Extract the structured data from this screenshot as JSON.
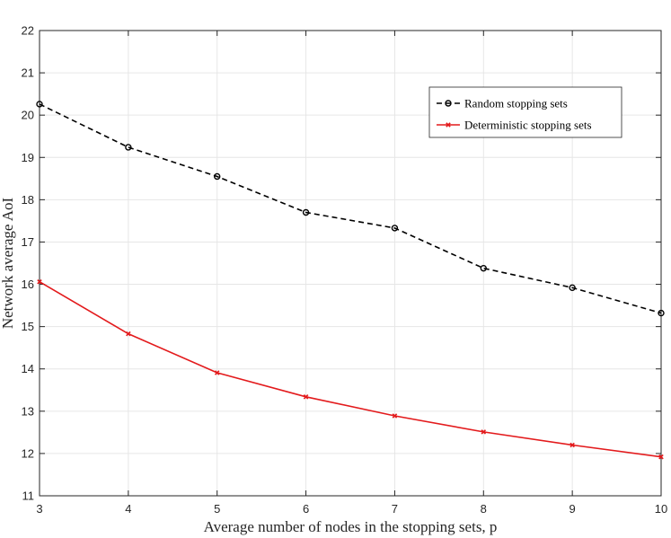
{
  "chart_data": {
    "type": "line",
    "xlabel": "Average number of nodes in the stopping sets, p",
    "ylabel": "Network average AoI",
    "xlim": [
      3,
      10
    ],
    "ylim": [
      11,
      22
    ],
    "x_ticks": [
      3,
      4,
      5,
      6,
      7,
      8,
      9,
      10
    ],
    "y_ticks": [
      11,
      12,
      13,
      14,
      15,
      16,
      17,
      18,
      19,
      20,
      21,
      22
    ],
    "grid": true,
    "legend_position": "top-right",
    "x": [
      3,
      4,
      5,
      6,
      7,
      8,
      9,
      10
    ],
    "series": [
      {
        "name": "Random stopping sets",
        "values": [
          20.26,
          19.24,
          18.55,
          17.7,
          17.33,
          16.38,
          15.92,
          15.32
        ],
        "color": "#000000",
        "line_style": "dashed",
        "marker": "circle"
      },
      {
        "name": "Deterministic stopping sets",
        "values": [
          16.06,
          14.83,
          13.91,
          13.34,
          12.89,
          12.51,
          12.2,
          11.92
        ],
        "color": "#e31a1c",
        "line_style": "solid",
        "marker": "x"
      }
    ]
  }
}
